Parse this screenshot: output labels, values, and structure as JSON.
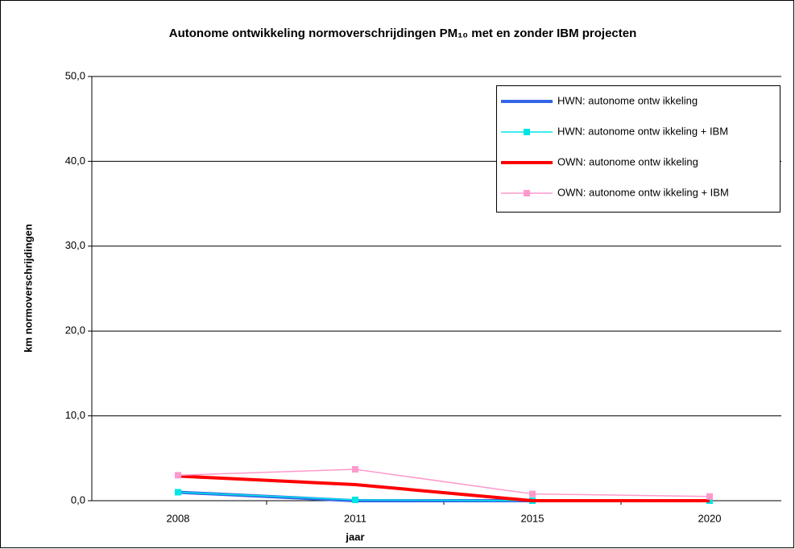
{
  "chart_data": {
    "type": "line",
    "title": "Autonome ontwikkeling normoverschrijdingen PM₁₀ met en zonder IBM projecten",
    "x_label": "jaar",
    "y_label": "km normoverschrijdingen",
    "categories": [
      "2008",
      "2011",
      "2015",
      "2020"
    ],
    "series": [
      {
        "name": "HWN: autonome ontw ikkeling",
        "color": "#3366e6",
        "marker": "none",
        "values": [
          1.0,
          0,
          0,
          0
        ]
      },
      {
        "name": "HWN: autonome ontw ikkeling + IBM",
        "color": "#00e5e5",
        "marker": "square",
        "values": [
          1.0,
          0.1,
          0,
          0
        ]
      },
      {
        "name": "OWN: autonome ontw ikkeling",
        "color": "#ff0000",
        "marker": "none",
        "values": [
          2.9,
          1.9,
          0,
          0
        ]
      },
      {
        "name": "OWN: autonome ontw ikkeling + IBM",
        "color": "#ff99cc",
        "marker": "square",
        "values": [
          3.0,
          3.7,
          0.8,
          0.5
        ]
      }
    ],
    "ylim": [
      0,
      50
    ],
    "yticks": [
      {
        "value": 0,
        "label": "0,0"
      },
      {
        "value": 10,
        "label": "10,0"
      },
      {
        "value": 20,
        "label": "20,0"
      },
      {
        "value": 30,
        "label": "30,0"
      },
      {
        "value": 40,
        "label": "40,0"
      },
      {
        "value": 50,
        "label": "50,0"
      }
    ],
    "grid": true,
    "legend": "top-right"
  }
}
